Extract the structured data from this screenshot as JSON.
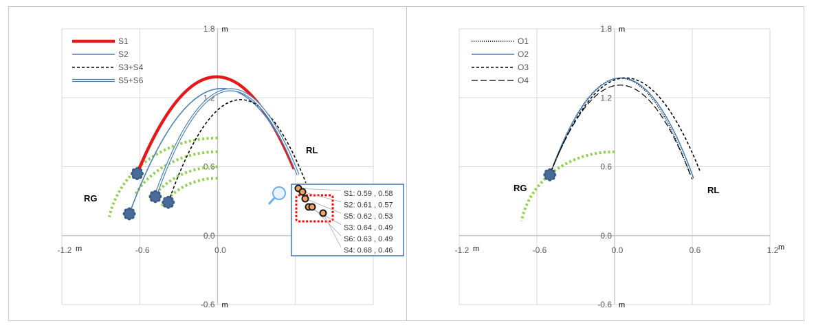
{
  "chart_data": [
    {
      "type": "line",
      "title": "",
      "xlabel": "m",
      "ylabel": "m",
      "xlim": [
        -1.2,
        1.2
      ],
      "ylim": [
        -0.6,
        1.8
      ],
      "x_ticks": [
        "-1.2",
        "-0.6",
        "0.0",
        "0.6"
      ],
      "y_ticks": [
        "1.8",
        "1.2",
        "0.6",
        "0.0",
        "-0.6"
      ],
      "grid": true,
      "legend_position": "top-left",
      "annotations": [
        "RG",
        "RL"
      ],
      "series": [
        {
          "name": "S1",
          "style": "solid-thick",
          "color": "#e31a1c",
          "start": [
            -0.62,
            0.54
          ],
          "apex": [
            -0.04,
            1.38
          ],
          "end": [
            0.59,
            0.58
          ]
        },
        {
          "name": "S2",
          "style": "solid",
          "color": "#4a7fb5",
          "start": [
            -0.68,
            0.19
          ],
          "apex": [
            0.06,
            1.28
          ],
          "end": [
            0.61,
            0.57
          ]
        },
        {
          "name": "S3+S4",
          "style": "dashed",
          "color": "#000000",
          "start": [
            -0.38,
            0.29
          ],
          "apex": [
            0.14,
            1.18
          ],
          "end": [
            0.68,
            0.46
          ]
        },
        {
          "name": "S5+S6",
          "style": "double",
          "color": "#4a7fb5",
          "start": [
            -0.48,
            0.34
          ],
          "apex": [
            0.04,
            1.26
          ],
          "end": [
            0.62,
            0.53
          ]
        }
      ],
      "start_markers": [
        [
          -0.62,
          0.54
        ],
        [
          -0.68,
          0.19
        ],
        [
          -0.48,
          0.34
        ],
        [
          -0.38,
          0.29
        ]
      ],
      "arcs": [
        {
          "center": [
            0.0,
            0.0
          ],
          "radius": 0.85,
          "from_deg": 90,
          "to_deg": 169
        },
        {
          "center": [
            0.0,
            0.0
          ],
          "radius": 0.73,
          "from_deg": 90,
          "to_deg": 150
        },
        {
          "center": [
            0.0,
            0.0
          ],
          "radius": 0.6,
          "from_deg": 90,
          "to_deg": 150
        },
        {
          "center": [
            0.0,
            0.0
          ],
          "radius": 0.5,
          "from_deg": 90,
          "to_deg": 150
        }
      ],
      "callout": {
        "points": [
          {
            "label": "S1: 0.59 , 0.58",
            "x": 0.59,
            "y": 0.58
          },
          {
            "label": "S2: 0.61 , 0.57",
            "x": 0.61,
            "y": 0.57
          },
          {
            "label": "S5: 0.62 , 0.53",
            "x": 0.62,
            "y": 0.53
          },
          {
            "label": "S3: 0.64 , 0.49",
            "x": 0.64,
            "y": 0.49
          },
          {
            "label": "S6: 0.63 , 0.49",
            "x": 0.63,
            "y": 0.49
          },
          {
            "label": "S4: 0.68 , 0.46",
            "x": 0.68,
            "y": 0.46
          }
        ]
      }
    },
    {
      "type": "line",
      "title": "",
      "xlabel": "m",
      "ylabel": "m",
      "xlim": [
        -1.2,
        1.2
      ],
      "ylim": [
        -0.6,
        1.8
      ],
      "x_ticks": [
        "-1.2",
        "-0.6",
        "0.0",
        "0.6",
        "1.2"
      ],
      "y_ticks": [
        "1.8",
        "1.2",
        "0.6",
        "0.0",
        "-0.6"
      ],
      "grid": true,
      "legend_position": "top-left",
      "annotations": [
        "RG",
        "RL"
      ],
      "series": [
        {
          "name": "O1",
          "style": "dotted",
          "color": "#000000",
          "start": [
            -0.5,
            0.53
          ],
          "apex": [
            0.06,
            1.37
          ],
          "end": [
            0.58,
            0.54
          ]
        },
        {
          "name": "O2",
          "style": "solid",
          "color": "#4a7fb5",
          "start": [
            -0.5,
            0.53
          ],
          "apex": [
            0.08,
            1.37
          ],
          "end": [
            0.61,
            0.5
          ]
        },
        {
          "name": "O3",
          "style": "dashed",
          "color": "#000000",
          "start": [
            -0.5,
            0.53
          ],
          "apex": [
            0.12,
            1.37
          ],
          "end": [
            0.66,
            0.56
          ]
        },
        {
          "name": "O4",
          "style": "long-dash",
          "color": "#000000",
          "start": [
            -0.5,
            0.53
          ],
          "apex": [
            0.06,
            1.31
          ],
          "end": [
            0.6,
            0.49
          ]
        }
      ],
      "start_markers": [
        [
          -0.5,
          0.53
        ]
      ],
      "arcs": [
        {
          "center": [
            0.0,
            0.0
          ],
          "radius": 0.73,
          "from_deg": 90,
          "to_deg": 170
        }
      ]
    }
  ]
}
